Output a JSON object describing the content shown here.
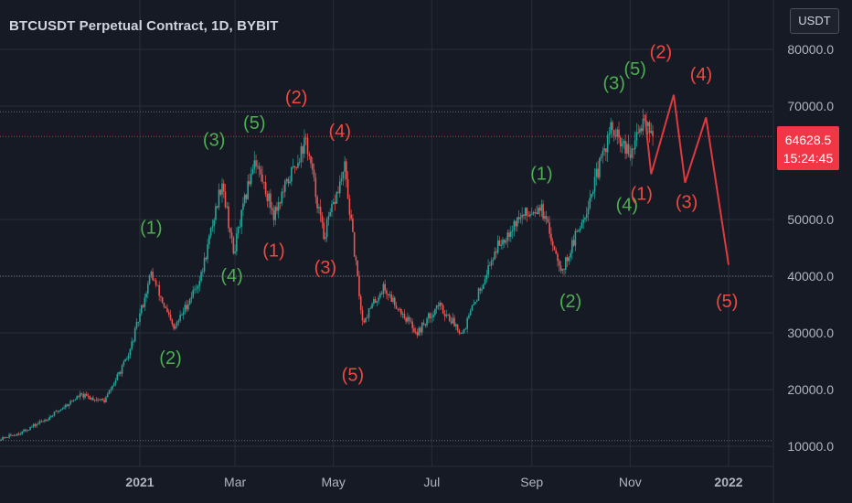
{
  "header": {
    "title": "BTCUSDT Perpetual Contract, 1D, BYBIT",
    "currency": "USDT"
  },
  "price_tag": {
    "price": "64628.5",
    "countdown": "15:24:45",
    "color": "#f23645"
  },
  "colors": {
    "background": "#161a25",
    "grid": "#2a2e39",
    "up": "#26a69a",
    "down": "#ef5350",
    "green_label": "#4caf50",
    "red_label": "#f0483e",
    "projection": "#e0393e",
    "axis_text": "#b2b5be"
  },
  "chart_data": {
    "type": "candlestick",
    "title": "BTCUSDT Perpetual Contract, 1D, BYBIT",
    "xlabel": "",
    "ylabel": "",
    "y_axis_ticks": [
      "80000.0",
      "70000.0",
      "50000.0",
      "40000.0",
      "30000.0",
      "20000.0",
      "10000.0"
    ],
    "x_axis_ticks": [
      "2021",
      "Mar",
      "May",
      "Jul",
      "Sep",
      "Nov",
      "2022"
    ],
    "ylim": [
      8000,
      86000
    ],
    "grid": true,
    "dotted_levels": [
      69000,
      64628.5,
      40000,
      11000
    ],
    "last_price": 64628.5,
    "price_path": [
      [
        "2020-10-01",
        10800
      ],
      [
        "2020-10-20",
        12500
      ],
      [
        "2020-11-05",
        15000
      ],
      [
        "2020-11-25",
        19000
      ],
      [
        "2020-12-10",
        18000
      ],
      [
        "2020-12-25",
        26000
      ],
      [
        "2021-01-08",
        40500
      ],
      [
        "2021-01-22",
        30500
      ],
      [
        "2021-02-08",
        40000
      ],
      [
        "2021-02-21",
        57000
      ],
      [
        "2021-02-28",
        44000
      ],
      [
        "2021-03-13",
        61000
      ],
      [
        "2021-03-25",
        51000
      ],
      [
        "2021-04-14",
        64000
      ],
      [
        "2021-04-25",
        47000
      ],
      [
        "2021-05-08",
        59000
      ],
      [
        "2021-05-19",
        32000
      ],
      [
        "2021-06-01",
        38000
      ],
      [
        "2021-06-22",
        30000
      ],
      [
        "2021-07-05",
        35000
      ],
      [
        "2021-07-20",
        30000
      ],
      [
        "2021-08-10",
        45000
      ],
      [
        "2021-08-23",
        50000
      ],
      [
        "2021-09-06",
        52500
      ],
      [
        "2021-09-20",
        41000
      ],
      [
        "2021-10-05",
        52000
      ],
      [
        "2021-10-20",
        66000
      ],
      [
        "2021-11-01",
        61000
      ],
      [
        "2021-11-10",
        68500
      ],
      [
        "2021-11-15",
        64628.5
      ]
    ],
    "projection_path": [
      [
        "2021-11-10",
        68500
      ],
      [
        "2021-11-14",
        58000
      ],
      [
        "2021-11-28",
        72000
      ],
      [
        "2021-12-05",
        56500
      ],
      [
        "2021-12-18",
        68000
      ],
      [
        "2022-01-01",
        42000
      ]
    ],
    "wave_labels": [
      {
        "text": "(1)",
        "color": "green",
        "date": "2021-01-08",
        "price": 47500
      },
      {
        "text": "(2)",
        "color": "green",
        "date": "2021-01-20",
        "price": 24500
      },
      {
        "text": "(3)",
        "color": "green",
        "date": "2021-02-16",
        "price": 63000
      },
      {
        "text": "(4)",
        "color": "green",
        "date": "2021-02-27",
        "price": 39000
      },
      {
        "text": "(5)",
        "color": "green",
        "date": "2021-03-13",
        "price": 66000
      },
      {
        "text": "(2)",
        "color": "red",
        "date": "2021-04-08",
        "price": 70500
      },
      {
        "text": "(1)",
        "color": "red",
        "date": "2021-03-25",
        "price": 43500
      },
      {
        "text": "(4)",
        "color": "red",
        "date": "2021-05-05",
        "price": 64500
      },
      {
        "text": "(3)",
        "color": "red",
        "date": "2021-04-26",
        "price": 40500
      },
      {
        "text": "(5)",
        "color": "red",
        "date": "2021-05-13",
        "price": 21500
      },
      {
        "text": "(1)",
        "color": "green",
        "date": "2021-09-07",
        "price": 57000
      },
      {
        "text": "(2)",
        "color": "green",
        "date": "2021-09-25",
        "price": 34500
      },
      {
        "text": "(3)",
        "color": "green",
        "date": "2021-10-22",
        "price": 73000
      },
      {
        "text": "(4)",
        "color": "green",
        "date": "2021-10-30",
        "price": 51500
      },
      {
        "text": "(5)",
        "color": "green",
        "date": "2021-11-04",
        "price": 75500
      },
      {
        "text": "(1)",
        "color": "red",
        "date": "2021-11-08",
        "price": 53500
      },
      {
        "text": "(2)",
        "color": "red",
        "date": "2021-11-20",
        "price": 78500
      },
      {
        "text": "(3)",
        "color": "red",
        "date": "2021-12-06",
        "price": 52000
      },
      {
        "text": "(4)",
        "color": "red",
        "date": "2021-12-15",
        "price": 74500
      },
      {
        "text": "(5)",
        "color": "red",
        "date": "2021-12-31",
        "price": 34500
      }
    ]
  }
}
